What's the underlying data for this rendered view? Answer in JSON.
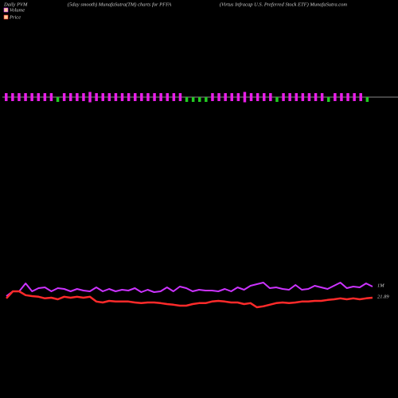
{
  "chart_data": {
    "type": "pvm",
    "title_left": "Daily PVM",
    "title_center": "(5day smooth) MunafaSutra(TM) charts for PFFA",
    "title_right": "(Virtus Infracap U.S. Preferred Stock ETF) MunafaSutra.com",
    "bars": {
      "values": [
        10,
        10,
        10,
        10,
        10,
        10,
        10,
        10,
        6,
        10,
        10,
        10,
        10,
        13,
        10,
        10,
        10,
        10,
        10,
        10,
        10,
        10,
        10,
        10,
        10,
        10,
        10,
        10,
        6,
        6,
        6,
        6,
        10,
        10,
        10,
        10,
        10,
        13,
        10,
        10,
        10,
        10,
        6,
        10,
        10,
        10,
        10,
        10,
        10,
        10,
        6,
        10,
        10,
        10,
        10,
        10,
        6
      ],
      "colors": [
        "#e81ee8",
        "#e81ee8",
        "#e81ee8",
        "#e81ee8",
        "#e81ee8",
        "#e81ee8",
        "#e81ee8",
        "#e81ee8",
        "#22cc22",
        "#e81ee8",
        "#e81ee8",
        "#e81ee8",
        "#e81ee8",
        "#e81ee8",
        "#e81ee8",
        "#e81ee8",
        "#e81ee8",
        "#e81ee8",
        "#e81ee8",
        "#e81ee8",
        "#e81ee8",
        "#e81ee8",
        "#e81ee8",
        "#e81ee8",
        "#e81ee8",
        "#e81ee8",
        "#e81ee8",
        "#e81ee8",
        "#22cc22",
        "#22cc22",
        "#22cc22",
        "#22cc22",
        "#e81ee8",
        "#e81ee8",
        "#e81ee8",
        "#e81ee8",
        "#e81ee8",
        "#e81ee8",
        "#e81ee8",
        "#e81ee8",
        "#e81ee8",
        "#e81ee8",
        "#22cc22",
        "#e81ee8",
        "#e81ee8",
        "#e81ee8",
        "#e81ee8",
        "#e81ee8",
        "#e81ee8",
        "#e81ee8",
        "#22cc22",
        "#e81ee8",
        "#e81ee8",
        "#e81ee8",
        "#e81ee8",
        "#e81ee8",
        "#22cc22"
      ]
    },
    "series": [
      {
        "name": "Volume",
        "color": "#cc33ff",
        "label": "1M",
        "values": [
          0.4,
          0.7,
          0.7,
          1.2,
          0.7,
          0.9,
          0.95,
          0.7,
          0.9,
          0.85,
          0.7,
          0.85,
          0.75,
          0.7,
          0.95,
          0.7,
          0.85,
          0.7,
          0.8,
          0.75,
          0.9,
          0.65,
          0.8,
          0.65,
          0.7,
          0.95,
          0.7,
          1.0,
          0.9,
          0.7,
          0.8,
          0.75,
          0.75,
          0.7,
          0.85,
          0.7,
          0.95,
          0.8,
          1.05,
          1.15,
          1.25,
          0.9,
          0.95,
          0.85,
          0.8,
          1.1,
          0.8,
          0.85,
          1.05,
          0.95,
          0.85,
          1.05,
          1.25,
          0.9,
          1.0,
          0.95,
          1.2,
          1.0
        ]
      },
      {
        "name": "Price",
        "color": "#ff2a2a",
        "label": "21.89",
        "values": [
          21.87,
          22.09,
          22.09,
          21.97,
          21.94,
          21.92,
          21.87,
          21.89,
          21.84,
          21.92,
          21.89,
          21.92,
          21.89,
          21.92,
          21.77,
          21.74,
          21.79,
          21.77,
          21.77,
          21.77,
          21.74,
          21.72,
          21.74,
          21.74,
          21.72,
          21.69,
          21.67,
          21.64,
          21.64,
          21.69,
          21.72,
          21.72,
          21.77,
          21.79,
          21.77,
          21.74,
          21.74,
          21.69,
          21.72,
          21.59,
          21.62,
          21.67,
          21.72,
          21.74,
          21.72,
          21.74,
          21.77,
          21.77,
          21.79,
          21.79,
          21.82,
          21.84,
          21.87,
          21.84,
          21.87,
          21.84,
          21.87,
          21.89
        ]
      }
    ]
  }
}
